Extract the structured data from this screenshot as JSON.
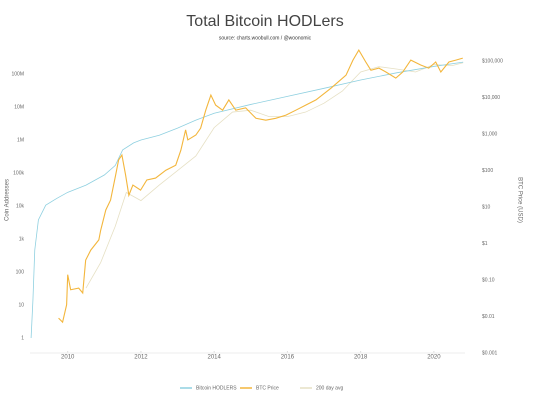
{
  "chart_data": {
    "type": "line",
    "title": "Total Bitcoin HODLers",
    "subtitle": "source: charts.woobull.com / @woonomic",
    "y_label": "Coin Addresses",
    "y2_label": "BTC Price (USD)",
    "log_scale": true,
    "grid": false,
    "legend": "bottom",
    "xlim": [
      2008.97,
      2020.85
    ],
    "xticks": [
      2010,
      2012,
      2014,
      2016,
      2018,
      2020
    ],
    "ylim": [
      0.35,
      760000000
    ],
    "yticks": [
      1,
      10,
      100,
      {
        "value": 1000,
        "label": "1k"
      },
      {
        "value": 10000,
        "label": "10k"
      },
      {
        "value": 100000,
        "label": "100k"
      },
      {
        "value": 1000000,
        "label": "1M"
      },
      {
        "value": 10000000,
        "label": "10M"
      },
      {
        "value": 100000000,
        "label": "100M"
      }
    ],
    "y2lim": [
      0.001,
      275000
    ],
    "y2ticks": [
      {
        "value": 0.001,
        "label": "$0.001"
      },
      {
        "value": 0.01,
        "label": "$0.01"
      },
      {
        "value": 0.1,
        "label": "$0.10"
      },
      {
        "value": 1,
        "label": "$1"
      },
      {
        "value": 10,
        "label": "$10"
      },
      {
        "value": 100,
        "label": "$100"
      },
      {
        "value": 1000,
        "label": "$1,000"
      },
      {
        "value": 10000,
        "label": "$10,000"
      },
      {
        "value": 100000,
        "label": "$100,000"
      }
    ],
    "series": [
      {
        "name": "Bitcoin HODLERS",
        "color": "#8fd0e0",
        "axis": "y",
        "x": [
          2009.0,
          2009.05,
          2009.1,
          2009.2,
          2009.4,
          2009.7,
          2010.0,
          2010.5,
          2011.0,
          2011.3,
          2011.5,
          2011.8,
          2012.0,
          2012.5,
          2013.0,
          2013.5,
          2014.0,
          2015.0,
          2016.0,
          2017.0,
          2018.0,
          2019.0,
          2020.0,
          2020.8
        ],
        "values": [
          1,
          14,
          460,
          3800,
          10600,
          17000,
          26000,
          43000,
          87000,
          170000,
          500000,
          820000,
          1000000,
          1400000,
          2300000,
          4000000,
          6500000,
          12000000,
          21000000,
          37000000,
          66000000,
          110000000,
          170000000,
          230000000
        ]
      },
      {
        "name": "BTC Price",
        "color": "#f3b63c",
        "axis": "y2",
        "x": [
          2009.75,
          2009.86,
          2009.97,
          2010.0,
          2010.08,
          2010.3,
          2010.41,
          2010.49,
          2010.63,
          2010.85,
          2010.9,
          2011.04,
          2011.17,
          2011.31,
          2011.39,
          2011.48,
          2011.58,
          2011.67,
          2011.78,
          2011.99,
          2012.16,
          2012.4,
          2012.68,
          2012.95,
          2013.09,
          2013.22,
          2013.28,
          2013.5,
          2013.63,
          2013.77,
          2013.91,
          2014.04,
          2014.23,
          2014.4,
          2014.59,
          2014.86,
          2015.14,
          2015.41,
          2015.68,
          2015.96,
          2016.23,
          2016.5,
          2016.78,
          2017.19,
          2017.6,
          2017.79,
          2017.95,
          2018.14,
          2018.28,
          2018.5,
          2018.69,
          2018.96,
          2019.15,
          2019.37,
          2019.64,
          2019.86,
          2020.05,
          2020.19,
          2020.41,
          2020.6,
          2020.79
        ],
        "values": [
          0.009,
          0.007,
          0.021,
          0.14,
          0.054,
          0.06,
          0.044,
          0.35,
          0.66,
          1.26,
          2.3,
          8.3,
          15.5,
          76,
          195,
          265,
          76,
          21,
          40,
          29,
          55,
          62,
          102,
          140,
          360,
          1300,
          690,
          940,
          1450,
          4500,
          11700,
          6200,
          4500,
          8600,
          4500,
          5200,
          2700,
          2400,
          2700,
          3300,
          4500,
          6200,
          8600,
          18000,
          41000,
          106000,
          200000,
          94000,
          56000,
          64000,
          50000,
          34000,
          50000,
          106000,
          78000,
          64000,
          94000,
          50000,
          94000,
          106000,
          120000
        ]
      },
      {
        "name": "200 day avg",
        "color": "#e6e0c4",
        "axis": "y2",
        "x": [
          2010.5,
          2010.9,
          2011.3,
          2011.6,
          2012.0,
          2012.5,
          2013.0,
          2013.5,
          2014.0,
          2014.5,
          2015.0,
          2015.5,
          2016.0,
          2016.5,
          2017.0,
          2017.5,
          2018.0,
          2018.5,
          2019.0,
          2019.5,
          2020.0,
          2020.5,
          2020.8
        ],
        "values": [
          0.06,
          0.3,
          3,
          25,
          15,
          40,
          100,
          250,
          1500,
          4000,
          4500,
          3000,
          3000,
          4000,
          7000,
          15000,
          50000,
          70000,
          60000,
          50000,
          80000,
          75000,
          90000
        ]
      }
    ]
  }
}
